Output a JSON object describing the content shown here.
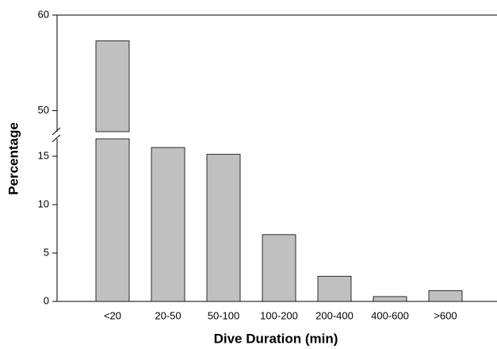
{
  "chart_data": {
    "type": "bar",
    "x_label": "Dive Duration (min)",
    "y_label": "Percentage",
    "categories": [
      "<20",
      "20-50",
      "50-100",
      "100-200",
      "200-400",
      "400-600",
      ">600"
    ],
    "values": [
      57.3,
      15.9,
      15.2,
      6.9,
      2.6,
      0.5,
      1.1
    ],
    "color": "#c0c0c0",
    "ylim_lower": [
      0,
      16.8
    ],
    "ylim_upper": [
      47.8,
      60
    ],
    "yticks": [
      0,
      5,
      10,
      15,
      50,
      60
    ],
    "grid": false
  }
}
